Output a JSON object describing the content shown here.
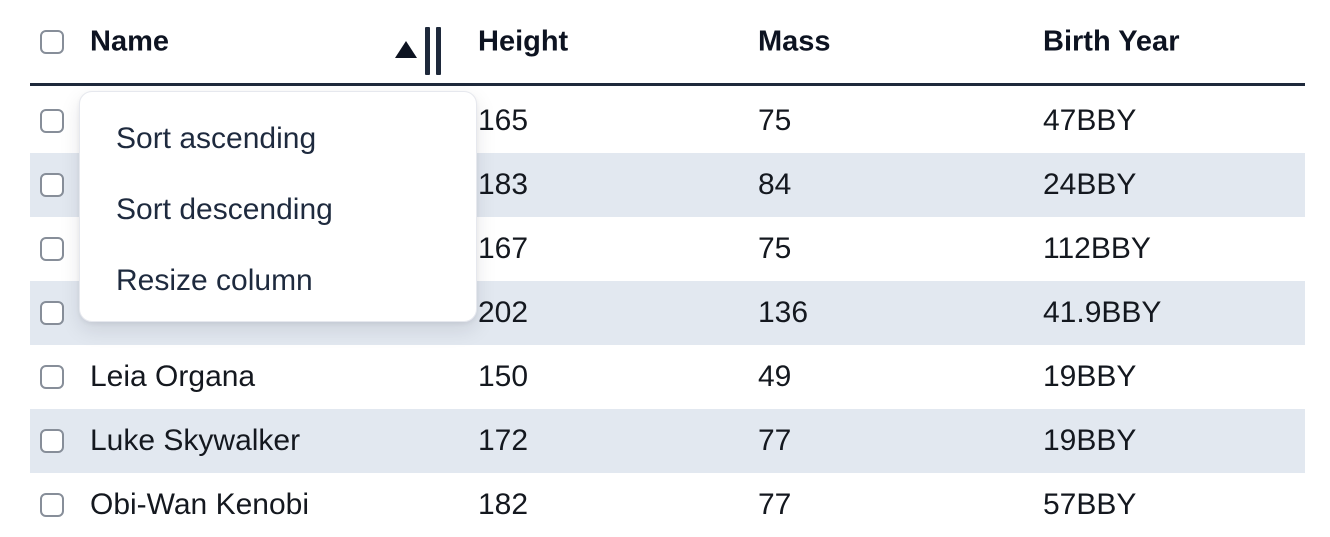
{
  "table": {
    "columns": [
      {
        "label": "Name",
        "sorted": "ascending"
      },
      {
        "label": "Height"
      },
      {
        "label": "Mass"
      },
      {
        "label": "Birth Year"
      }
    ],
    "rows": [
      {
        "name": "",
        "height": "165",
        "mass": "75",
        "birth_year": "47BBY"
      },
      {
        "name": "",
        "height": "183",
        "mass": "84",
        "birth_year": "24BBY"
      },
      {
        "name": "",
        "height": "167",
        "mass": "75",
        "birth_year": "112BBY"
      },
      {
        "name": "",
        "height": "202",
        "mass": "136",
        "birth_year": "41.9BBY"
      },
      {
        "name": "Leia Organa",
        "height": "150",
        "mass": "49",
        "birth_year": "19BBY"
      },
      {
        "name": "Luke Skywalker",
        "height": "172",
        "mass": "77",
        "birth_year": "19BBY"
      },
      {
        "name": "Obi-Wan Kenobi",
        "height": "182",
        "mass": "77",
        "birth_year": "57BBY"
      }
    ]
  },
  "column_menu": {
    "items": [
      {
        "label": "Sort ascending"
      },
      {
        "label": "Sort descending"
      },
      {
        "label": "Resize column"
      }
    ]
  },
  "icons": {
    "sort_ascending": "triangle-up",
    "column_resize": "double-vertical-bars"
  },
  "colors": {
    "row_stripe": "#e2e8f0",
    "header_border": "#1e293b",
    "text": "#14181f",
    "menu_background": "#ffffff",
    "checkbox_border": "#878e99"
  }
}
